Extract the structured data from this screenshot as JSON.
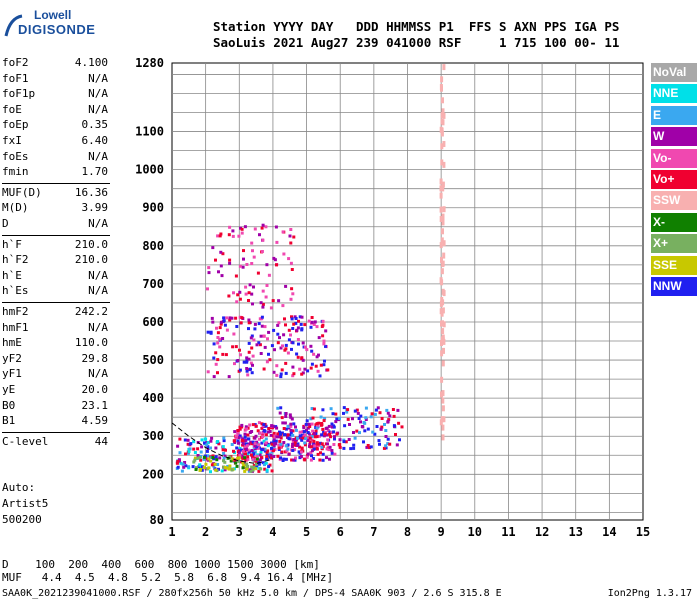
{
  "logo": {
    "top": "Lowell",
    "bottom": "DIGISONDE"
  },
  "header": {
    "line1": "Station YYYY DAY   DDD HHMMSS P1  FFS S AXN PPS IGA PS",
    "line2": "SaoLuis 2021 Aug27 239 041000 RSF     1 715 100 00- 11"
  },
  "params": [
    {
      "k": "foF2",
      "v": "4.100"
    },
    {
      "k": "foF1",
      "v": "N/A"
    },
    {
      "k": "foF1p",
      "v": "N/A"
    },
    {
      "k": "foE",
      "v": "N/A"
    },
    {
      "k": "foEp",
      "v": "0.35"
    },
    {
      "k": "fxI",
      "v": "6.40"
    },
    {
      "k": "foEs",
      "v": "N/A"
    },
    {
      "k": "fmin",
      "v": "1.70"
    },
    {
      "k": "MUF(D)",
      "v": "16.36"
    },
    {
      "k": "M(D)",
      "v": "3.99"
    },
    {
      "k": "D",
      "v": "N/A"
    },
    {
      "k": "h`F",
      "v": "210.0"
    },
    {
      "k": "h`F2",
      "v": "210.0"
    },
    {
      "k": "h`E",
      "v": "N/A"
    },
    {
      "k": "h`Es",
      "v": "N/A"
    },
    {
      "k": "hmF2",
      "v": "242.2"
    },
    {
      "k": "hmF1",
      "v": "N/A"
    },
    {
      "k": "hmE",
      "v": "110.0"
    },
    {
      "k": "yF2",
      "v": "29.8"
    },
    {
      "k": "yF1",
      "v": "N/A"
    },
    {
      "k": "yE",
      "v": "20.0"
    },
    {
      "k": "B0",
      "v": "23.1"
    },
    {
      "k": "B1",
      "v": "4.59"
    },
    {
      "k": "C-level",
      "v": "44"
    }
  ],
  "auto": {
    "line1": "Auto:",
    "line2": "Artist5",
    "line3": "500200"
  },
  "legend": [
    {
      "label": "NoVal",
      "color": "#a8a8a8"
    },
    {
      "label": "NNE",
      "color": "#00e0e8"
    },
    {
      "label": "E",
      "color": "#3aa8f0"
    },
    {
      "label": "W",
      "color": "#a000a8"
    },
    {
      "label": "Vo-",
      "color": "#f048b0"
    },
    {
      "label": "Vo+",
      "color": "#f00030"
    },
    {
      "label": "SSW",
      "color": "#f8b0b0"
    },
    {
      "label": "X-",
      "color": "#108000"
    },
    {
      "label": "X+",
      "color": "#78b060"
    },
    {
      "label": "SSE",
      "color": "#c8c800"
    },
    {
      "label": "NNW",
      "color": "#2020f0"
    }
  ],
  "footer": {
    "d_row": "D    100  200  400  600  800 1000 1500 3000 [km]",
    "muf_row": "MUF   4.4  4.5  4.8  5.2  5.8  6.8  9.4 16.4 [MHz]",
    "source": "SAA0K_2021239041000.RSF / 280fx256h 50 kHz 5.0 km / DPS-4 SAA0K 903 / 2.6 S 315.8 E",
    "version": "Ion2Png 1.3.17"
  },
  "chart_data": {
    "type": "scatter",
    "xlim": [
      1,
      15
    ],
    "ylim": [
      80,
      1280
    ],
    "xticks": [
      "1",
      "2",
      "3",
      "4",
      "5",
      "6",
      "7",
      "8",
      "9",
      "10",
      "11",
      "12",
      "13",
      "14",
      "15"
    ],
    "yticks": [
      "80",
      "200",
      "300",
      "400",
      "500",
      "600",
      "700",
      "800",
      "900",
      "1000",
      "1100",
      "1280"
    ],
    "ytick_values": [
      80,
      200,
      300,
      400,
      500,
      600,
      700,
      800,
      900,
      1000,
      1100,
      1280
    ],
    "grid": true,
    "clusters": [
      {
        "x": [
          1.1,
          4.0
        ],
        "y": [
          210,
          300
        ],
        "colors": [
          "#2020f0",
          "#a000a8",
          "#f00030",
          "#00e0e8",
          "#3aa8f0"
        ],
        "n": 220
      },
      {
        "x": [
          2.8,
          5.8
        ],
        "y": [
          240,
          340
        ],
        "colors": [
          "#f00030",
          "#a000a8",
          "#2020f0",
          "#f048b0"
        ],
        "n": 320
      },
      {
        "x": [
          4.0,
          7.8
        ],
        "y": [
          270,
          380
        ],
        "colors": [
          "#f00030",
          "#a000a8",
          "#2020f0",
          "#3aa8f0"
        ],
        "n": 160
      },
      {
        "x": [
          2.0,
          5.6
        ],
        "y": [
          460,
          620
        ],
        "colors": [
          "#a000a8",
          "#f048b0",
          "#f00030",
          "#2020f0"
        ],
        "n": 200
      },
      {
        "x": [
          2.0,
          4.6
        ],
        "y": [
          640,
          860
        ],
        "colors": [
          "#a000a8",
          "#f048b0",
          "#f00030"
        ],
        "n": 90
      },
      {
        "x": [
          1.6,
          3.6
        ],
        "y": [
          210,
          250
        ],
        "colors": [
          "#78b060",
          "#108000",
          "#c8c800"
        ],
        "n": 60
      },
      {
        "x": [
          8.95,
          9.05
        ],
        "y": [
          300,
          1280
        ],
        "colors": [
          "#f8b0b0"
        ],
        "n": 70
      }
    ],
    "trace": {
      "x": [
        1.0,
        1.5,
        2.0,
        2.5,
        3.0,
        3.5,
        4.0
      ],
      "y": [
        335,
        300,
        270,
        248,
        235,
        228,
        240
      ]
    }
  }
}
